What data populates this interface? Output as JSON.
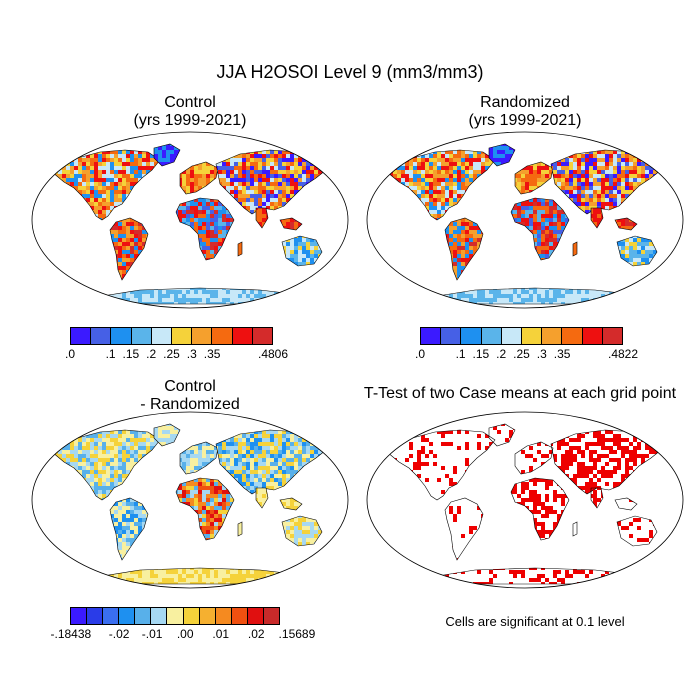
{
  "title": "JJA H2OSOI Level 9 (mm3/mm3)",
  "panels": {
    "control": {
      "title_line1": "Control",
      "title_line2": "(yrs 1999-2021)",
      "colorbar": {
        "colors": [
          "#3b1aff",
          "#4660e6",
          "#1e90f0",
          "#5ab4ea",
          "#c8e8f8",
          "#f5d23a",
          "#f5a02d",
          "#f56a10",
          "#ee1010",
          "#d42b2b"
        ],
        "labels": [
          ".0",
          ".1",
          ".15",
          ".2",
          ".25",
          ".3",
          ".35",
          ".4806"
        ]
      }
    },
    "randomized": {
      "title_line1": "Randomized",
      "title_line2": "(yrs 1999-2021)",
      "colorbar": {
        "colors": [
          "#3b1aff",
          "#4660e6",
          "#1e90f0",
          "#5ab4ea",
          "#c8e8f8",
          "#f5d23a",
          "#f5a02d",
          "#f56a10",
          "#ee1010",
          "#d42b2b"
        ],
        "labels": [
          ".0",
          ".1",
          ".15",
          ".2",
          ".25",
          ".3",
          ".35",
          ".4822"
        ]
      }
    },
    "difference": {
      "title_line1": "Control",
      "title_line2": "- Randomized",
      "colorbar": {
        "colors": [
          "#3b1aff",
          "#2a3ce8",
          "#3a6ef0",
          "#1e90f0",
          "#58b0ea",
          "#a6d8f2",
          "#f8f0a0",
          "#f5d23a",
          "#f5b030",
          "#f58a20",
          "#f05010",
          "#e01010",
          "#c82a2a"
        ],
        "labels": [
          "-.18438",
          "-.02",
          "-.01",
          ".00",
          ".01",
          ".02",
          ".15689"
        ]
      }
    },
    "ttest": {
      "title": "T-Test of two Case means at each grid point",
      "footnote": "Cells are significant at 0.1 level",
      "significant_color": "#ee0000"
    }
  }
}
